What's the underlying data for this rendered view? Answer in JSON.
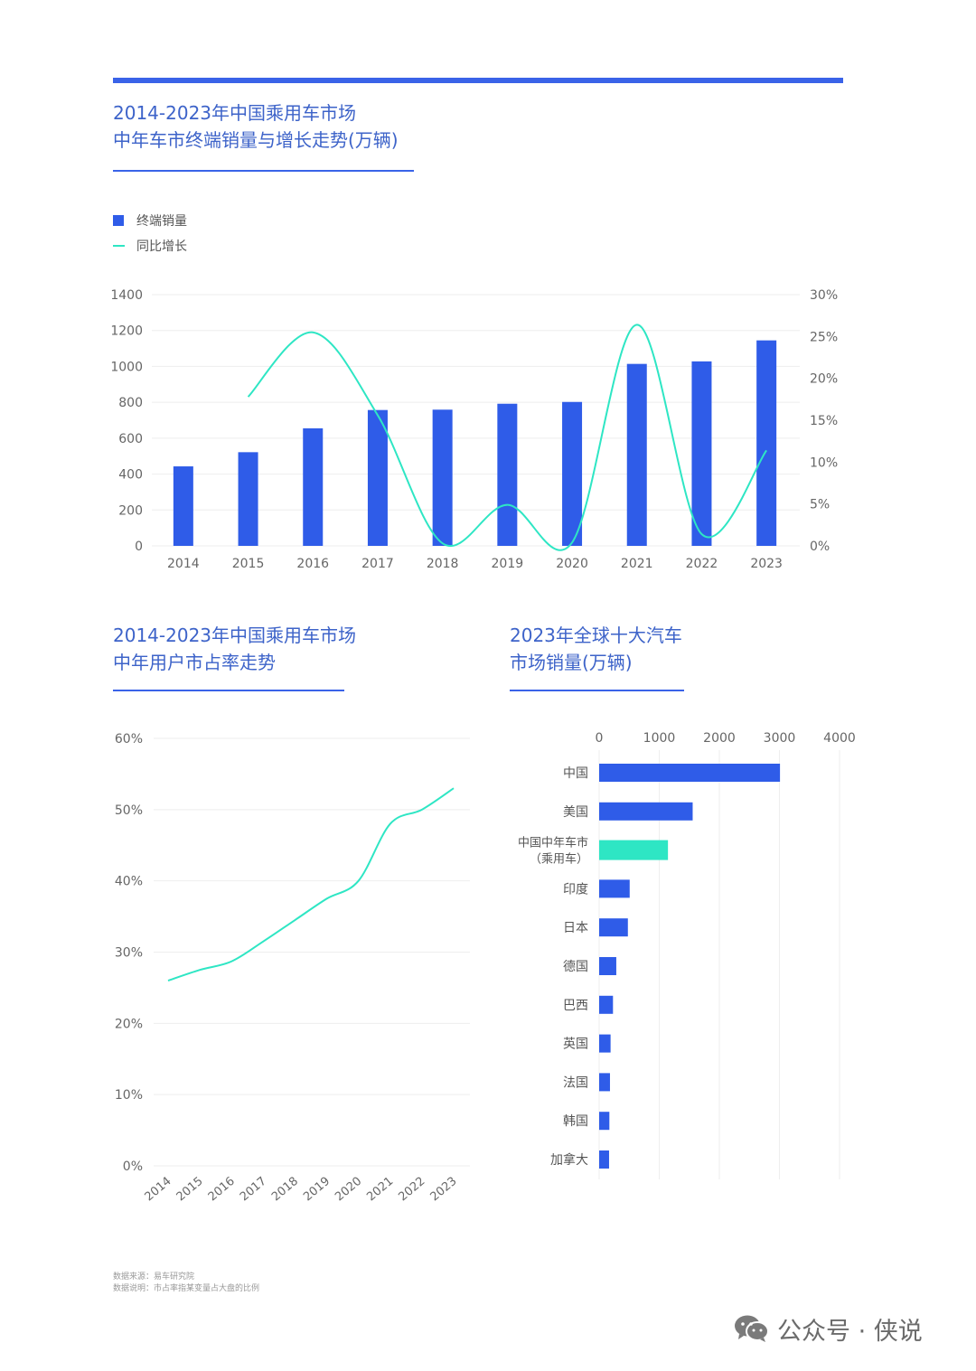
{
  "chart1": {
    "title_line1": "2014-2023年中国乘用车市场",
    "title_line2": "中年车市终端销量与增长走势(万辆)",
    "legend_bar": "终端销量",
    "legend_line": "同比增长",
    "colors": {
      "bar": "#2f5ce8",
      "line": "#2ee6c4"
    }
  },
  "chart2": {
    "title_line1": "2014-2023年中国乘用车市场",
    "title_line2": "中年用户市占率走势"
  },
  "chart3": {
    "title_line1": "2023年全球十大汽车",
    "title_line2": "市场销量(万辆)"
  },
  "chart_data": [
    {
      "type": "bar",
      "categories": [
        "2014",
        "2015",
        "2016",
        "2017",
        "2018",
        "2019",
        "2020",
        "2021",
        "2022",
        "2023"
      ],
      "series": [
        {
          "name": "终端销量",
          "type": "bar",
          "axis": "left",
          "values": [
            443,
            522,
            655,
            757,
            759,
            792,
            802,
            1014,
            1028,
            1145
          ]
        },
        {
          "name": "同比增长",
          "type": "line",
          "axis": "right",
          "values": [
            null,
            17.8,
            25.5,
            15.6,
            0.3,
            4.9,
            0.4,
            26.4,
            1.4,
            11.4
          ]
        }
      ],
      "ylim": [
        0,
        1400
      ],
      "yticks": [
        "0",
        "200",
        "400",
        "600",
        "800",
        "1000",
        "1200",
        "1400"
      ],
      "y2lim": [
        0,
        30
      ],
      "y2ticks": [
        "0%",
        "5%",
        "10%",
        "15%",
        "20%",
        "25%",
        "30%"
      ],
      "grid": true,
      "legend": "top-left"
    },
    {
      "type": "line",
      "categories": [
        "2014",
        "2015",
        "2016",
        "2017",
        "2018",
        "2019",
        "2020",
        "2021",
        "2022",
        "2023"
      ],
      "values": [
        26.0,
        27.5,
        28.7,
        31.5,
        34.5,
        37.5,
        40.0,
        48.0,
        50.0,
        53.0
      ],
      "ylim": [
        0,
        60
      ],
      "yticks": [
        "0%",
        "10%",
        "20%",
        "30%",
        "40%",
        "50%",
        "60%"
      ],
      "grid": true,
      "color": "#2ee6c4"
    },
    {
      "type": "bar",
      "orientation": "horizontal",
      "categories": [
        "中国",
        "美国",
        "中国中年车市（乘用车）",
        "印度",
        "日本",
        "德国",
        "巴西",
        "英国",
        "法国",
        "韩国",
        "加拿大"
      ],
      "category_lines": [
        [
          "中国"
        ],
        [
          "美国"
        ],
        [
          "中国中年车市",
          "（乘用车）"
        ],
        [
          "印度"
        ],
        [
          "日本"
        ],
        [
          "德国"
        ],
        [
          "巴西"
        ],
        [
          "英国"
        ],
        [
          "法国"
        ],
        [
          "韩国"
        ],
        [
          "加拿大"
        ]
      ],
      "values": [
        3009,
        1556,
        1145,
        508,
        478,
        285,
        230,
        190,
        180,
        170,
        165
      ],
      "highlight_index": 2,
      "xlim": [
        0,
        4000
      ],
      "xticks": [
        "0",
        "1000",
        "2000",
        "3000",
        "4000"
      ],
      "grid": true,
      "colors": {
        "bar": "#2f5ce8",
        "highlight": "#2ee6c4"
      }
    }
  ],
  "footer": {
    "source": "数据来源：易车研究院",
    "note": "数据说明：市占率指某变量占大盘的比例"
  },
  "watermark": {
    "text": "公众号 · 侠说",
    "icon": "wechat-icon"
  }
}
